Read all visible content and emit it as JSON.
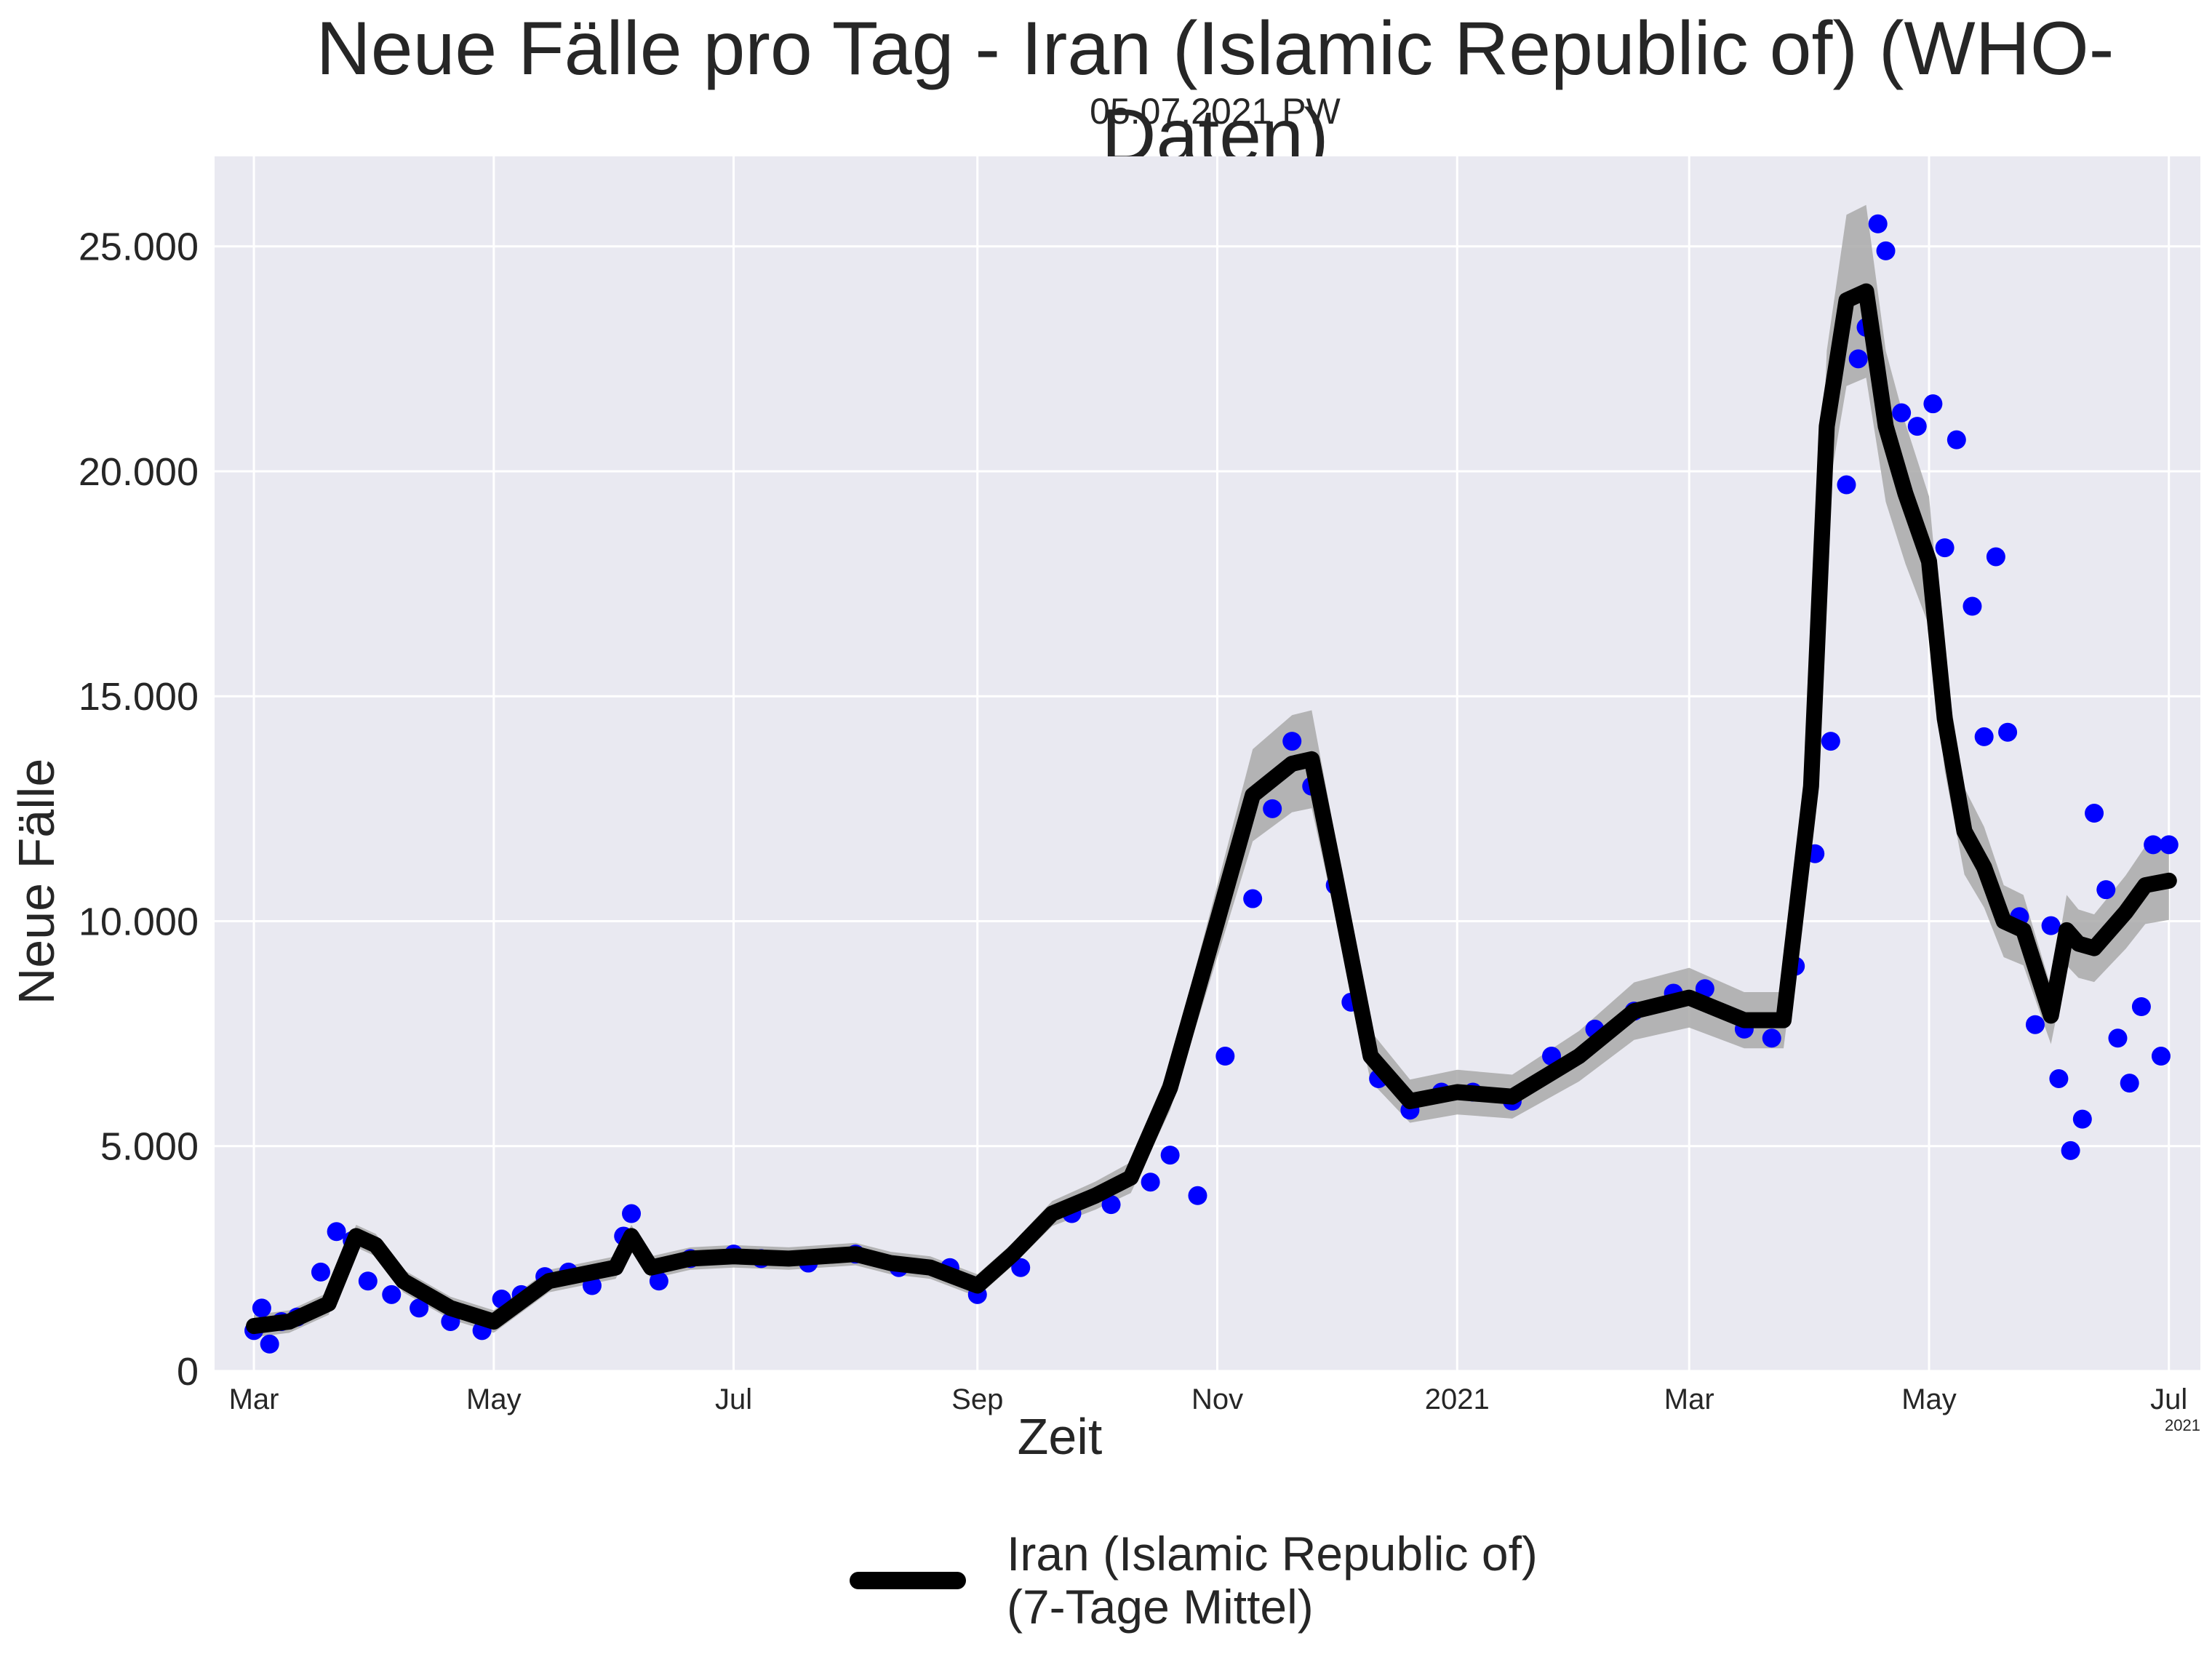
{
  "chart_data": {
    "type": "line",
    "title": "Neue Fälle pro Tag - Iran (Islamic Republic of) (WHO-Daten)",
    "subtitle": "05.07.2021 PW",
    "xlabel": "Zeit",
    "ylabel": "Neue Fälle",
    "ylim": [
      0,
      27000
    ],
    "xlim": [
      "2020-02-20",
      "2021-07-09"
    ],
    "yticks": [
      0,
      5000,
      10000,
      15000,
      20000,
      25000
    ],
    "ytick_labels": [
      "0",
      "5.000",
      "10.000",
      "15.000",
      "20.000",
      "25.000"
    ],
    "xticks": [
      "2020-03-01",
      "2020-05-01",
      "2020-07-01",
      "2020-09-01",
      "2020-11-01",
      "2021-01-01",
      "2021-03-01",
      "2021-05-01",
      "2021-07-01"
    ],
    "xtick_labels": [
      "Mar",
      "May",
      "Jul",
      "Sep",
      "Nov",
      "2021",
      "Mar",
      "May",
      "Jul"
    ],
    "x_offset_label": "2021",
    "grid": true,
    "legend_position": "bottom-center",
    "colors": {
      "points": "#0000ff",
      "mean": "#000000",
      "band": "#a9a9a9",
      "background": "#e9e9f1",
      "grid": "#ffffff"
    },
    "series": [
      {
        "name": "Iran (Islamic Republic of)\n(7-Tage Mittel)",
        "style": "line",
        "x": [
          "2020-03-01",
          "2020-03-10",
          "2020-03-20",
          "2020-03-27",
          "2020-04-01",
          "2020-04-08",
          "2020-04-20",
          "2020-05-01",
          "2020-05-15",
          "2020-06-01",
          "2020-06-05",
          "2020-06-10",
          "2020-06-20",
          "2020-07-01",
          "2020-07-15",
          "2020-08-01",
          "2020-08-10",
          "2020-08-20",
          "2020-09-01",
          "2020-09-10",
          "2020-09-20",
          "2020-10-01",
          "2020-10-10",
          "2020-10-20",
          "2020-11-01",
          "2020-11-10",
          "2020-11-20",
          "2020-11-25",
          "2020-12-01",
          "2020-12-10",
          "2020-12-20",
          "2021-01-01",
          "2021-01-15",
          "2021-02-01",
          "2021-02-15",
          "2021-03-01",
          "2021-03-15",
          "2021-03-25",
          "2021-04-01",
          "2021-04-05",
          "2021-04-10",
          "2021-04-15",
          "2021-04-20",
          "2021-04-25",
          "2021-05-01",
          "2021-05-05",
          "2021-05-10",
          "2021-05-15",
          "2021-05-20",
          "2021-05-25",
          "2021-06-01",
          "2021-06-05",
          "2021-06-08",
          "2021-06-12",
          "2021-06-16",
          "2021-06-20",
          "2021-06-25",
          "2021-07-01"
        ],
        "y": [
          1000,
          1100,
          1500,
          3000,
          2800,
          2000,
          1400,
          1100,
          2000,
          2300,
          3000,
          2300,
          2500,
          2550,
          2500,
          2600,
          2400,
          2300,
          1900,
          2600,
          3500,
          3900,
          4300,
          6300,
          10000,
          12800,
          13500,
          13600,
          11000,
          7000,
          6000,
          6200,
          6100,
          7000,
          8000,
          8300,
          7800,
          7800,
          13000,
          21000,
          23800,
          24000,
          21000,
          19500,
          18000,
          14500,
          12000,
          11200,
          10000,
          9800,
          7900,
          9800,
          9500,
          9400,
          9800,
          10200,
          10800,
          10900
        ]
      },
      {
        "name": "",
        "style": "scatter",
        "x": [
          "2020-03-01",
          "2020-03-03",
          "2020-03-05",
          "2020-03-08",
          "2020-03-12",
          "2020-03-18",
          "2020-03-22",
          "2020-03-26",
          "2020-03-30",
          "2020-04-05",
          "2020-04-12",
          "2020-04-20",
          "2020-04-28",
          "2020-05-03",
          "2020-05-08",
          "2020-05-14",
          "2020-05-20",
          "2020-05-26",
          "2020-06-03",
          "2020-06-05",
          "2020-06-12",
          "2020-06-20",
          "2020-07-01",
          "2020-07-08",
          "2020-07-20",
          "2020-08-01",
          "2020-08-12",
          "2020-08-25",
          "2020-09-01",
          "2020-09-12",
          "2020-09-25",
          "2020-10-05",
          "2020-10-15",
          "2020-10-20",
          "2020-10-27",
          "2020-11-03",
          "2020-11-10",
          "2020-11-15",
          "2020-11-20",
          "2020-11-25",
          "2020-12-01",
          "2020-12-05",
          "2020-12-12",
          "2020-12-20",
          "2020-12-28",
          "2021-01-05",
          "2021-01-15",
          "2021-01-25",
          "2021-02-05",
          "2021-02-15",
          "2021-02-25",
          "2021-03-05",
          "2021-03-15",
          "2021-03-22",
          "2021-03-28",
          "2021-04-02",
          "2021-04-06",
          "2021-04-10",
          "2021-04-13",
          "2021-04-15",
          "2021-04-18",
          "2021-04-20",
          "2021-04-24",
          "2021-04-28",
          "2021-05-02",
          "2021-05-05",
          "2021-05-08",
          "2021-05-12",
          "2021-05-15",
          "2021-05-18",
          "2021-05-21",
          "2021-05-24",
          "2021-05-28",
          "2021-06-01",
          "2021-06-03",
          "2021-06-06",
          "2021-06-09",
          "2021-06-12",
          "2021-06-15",
          "2021-06-18",
          "2021-06-21",
          "2021-06-24",
          "2021-06-27",
          "2021-06-29",
          "2021-07-01"
        ],
        "y": [
          900,
          1400,
          600,
          1100,
          1200,
          2200,
          3100,
          2900,
          2000,
          1700,
          1400,
          1100,
          900,
          1600,
          1700,
          2100,
          2200,
          1900,
          3000,
          3500,
          2000,
          2500,
          2600,
          2500,
          2400,
          2600,
          2300,
          2300,
          1700,
          2300,
          3500,
          3700,
          4200,
          4800,
          3900,
          7000,
          10500,
          12500,
          14000,
          13000,
          10800,
          8200,
          6500,
          5800,
          6200,
          6200,
          6000,
          7000,
          7600,
          8000,
          8400,
          8500,
          7600,
          7400,
          9000,
          11500,
          14000,
          19700,
          22500,
          23200,
          25500,
          24900,
          21300,
          21000,
          21500,
          18300,
          20700,
          17000,
          14100,
          18100,
          14200,
          10100,
          7700,
          9900,
          6500,
          4900,
          5600,
          12400,
          10700,
          7400,
          6400,
          8100,
          11700,
          7000,
          11700
        ]
      }
    ]
  }
}
